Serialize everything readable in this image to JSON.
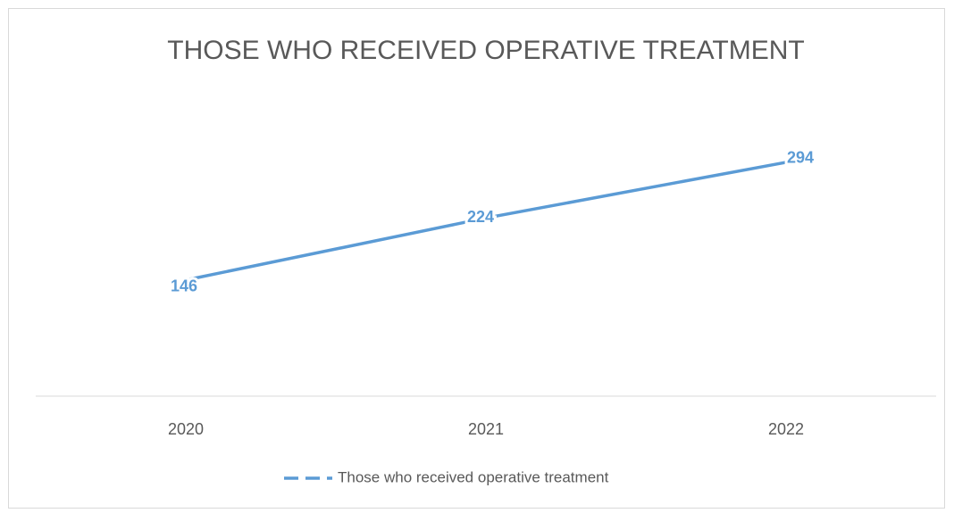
{
  "chart_data": {
    "type": "line",
    "title": "THOSE WHO RECEIVED OPERATIVE TREATMENT",
    "categories": [
      "2020",
      "2021",
      "2022"
    ],
    "series": [
      {
        "name": "Those who received operative treatment",
        "color": "#5b9bd5",
        "values": [
          146,
          224,
          294
        ]
      }
    ],
    "ylim": [
      0,
      350
    ],
    "legend": "bottom"
  }
}
